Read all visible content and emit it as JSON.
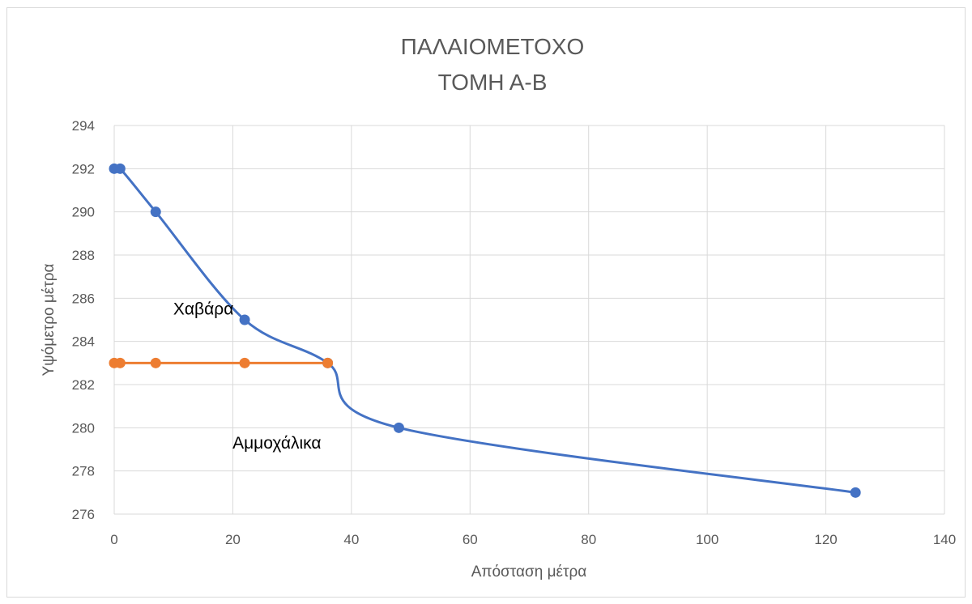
{
  "chart_data": {
    "type": "scatter",
    "title": [
      "ΠΑΛΑΙΟΜΕΤΟΧΟ",
      "ΤΟΜΗ Α-Β"
    ],
    "xlabel": "Απόσταση μέτρα",
    "ylabel": "Υψόμετρο μέτρα",
    "xlim": [
      0,
      140
    ],
    "ylim": [
      276,
      294
    ],
    "xticks": [
      0,
      20,
      40,
      60,
      80,
      100,
      120,
      140
    ],
    "yticks": [
      276,
      278,
      280,
      282,
      284,
      286,
      288,
      290,
      292,
      294
    ],
    "grid": true,
    "smooth_lines": true,
    "series": [
      {
        "color": "#4472c4",
        "x": [
          0,
          1,
          7,
          22,
          36,
          48,
          125
        ],
        "y": [
          292,
          292,
          290,
          285,
          283,
          280,
          277
        ]
      },
      {
        "color": "#ed7d31",
        "x": [
          0,
          1,
          7,
          22,
          36
        ],
        "y": [
          283,
          283,
          283,
          283,
          283
        ]
      }
    ],
    "annotations": [
      {
        "text": "Χαβάρα",
        "x": 10.5,
        "y": 285.5
      },
      {
        "text": "Αμμοχάλικα",
        "x": 20.5,
        "y": 279.3
      }
    ]
  }
}
